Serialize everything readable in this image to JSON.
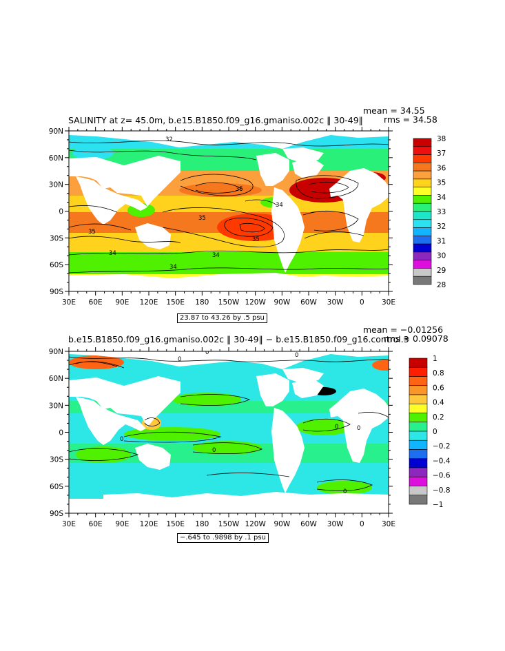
{
  "panels": [
    {
      "id": "top",
      "title": "SALINITY at z=  45.0m, b.e15.B1850.f09_g16.gmaniso.002c ‖ 30-49‖",
      "stats": [
        "mean = 34.55",
        "rms = 34.58"
      ],
      "info": "23.87 to 43.26 by .5 psu",
      "lat_ticks": [
        "90N",
        "60N",
        "30N",
        "0",
        "30S",
        "60S",
        "90S"
      ],
      "lon_ticks": [
        "30E",
        "60E",
        "90E",
        "120E",
        "150E",
        "180",
        "150W",
        "120W",
        "90W",
        "60W",
        "30W",
        "0",
        "30E"
      ],
      "colorbar": {
        "labels": [
          "38",
          "37",
          "36",
          "35",
          "34",
          "33",
          "32",
          "31",
          "30",
          "29",
          "28"
        ],
        "colors": [
          "#c80000",
          "#ee1010",
          "#ff3a00",
          "#f5781e",
          "#fba03c",
          "#ffd21e",
          "#ffff28",
          "#4ff000",
          "#28f078",
          "#1ee6c8",
          "#2de2f0",
          "#10b4ff",
          "#1e6ef0",
          "#0000d2",
          "#8c28be",
          "#dc0fdc",
          "#c8c8c8",
          "#787878"
        ]
      },
      "contour_labels": [
        "32",
        "35",
        "34",
        "35",
        "35",
        "35",
        "34",
        "34",
        "34"
      ]
    },
    {
      "id": "bottom",
      "title": "b.e15.B1850.f09_g16.gmaniso.002c ‖ 30-49‖ − b.e15.B1850.f09_g16.control.3",
      "stats": [
        "mean = −0.01256",
        "rms = 0.09078"
      ],
      "info": "−.645 to .9898 by .1 psu",
      "lat_ticks": [
        "90N",
        "60N",
        "30N",
        "0",
        "30S",
        "60S",
        "90S"
      ],
      "lon_ticks": [
        "30E",
        "60E",
        "90E",
        "120E",
        "150E",
        "180",
        "150W",
        "120W",
        "90W",
        "60W",
        "30W",
        "0",
        "30E"
      ],
      "colorbar": {
        "labels": [
          "1",
          "0.8",
          "0.6",
          "0.4",
          "0.2",
          "0",
          "−0.2",
          "−0.4",
          "−0.6",
          "−0.8",
          "−1"
        ],
        "colors": [
          "#c80000",
          "#ff1e00",
          "#ff6414",
          "#fa9628",
          "#ffc83c",
          "#ffff28",
          "#4ff000",
          "#28f08c",
          "#2de6e6",
          "#10b4ff",
          "#1e6ef0",
          "#0000d2",
          "#8c28be",
          "#dc0fdc",
          "#c8c8c8",
          "#787878"
        ]
      },
      "contour_labels": [
        "0",
        "0",
        "0",
        "0",
        "0",
        "0",
        "0",
        "0"
      ]
    }
  ],
  "colors": {
    "land": "#ffffff",
    "frame": "#000000"
  }
}
